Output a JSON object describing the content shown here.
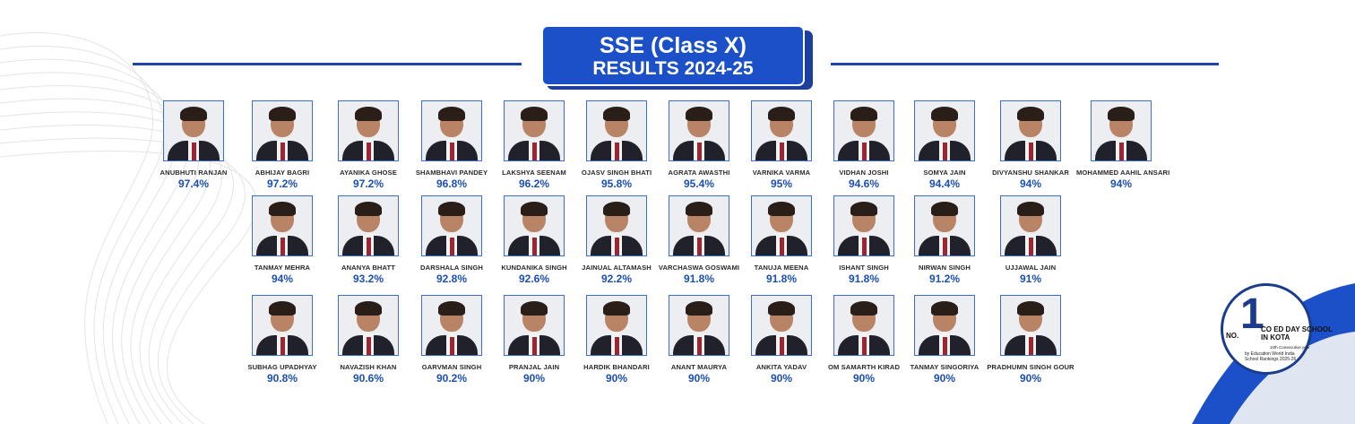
{
  "header": {
    "title_line1": "SSE (Class X)",
    "title_line2": "RESULTS 2024-25"
  },
  "students": [
    {
      "name": "ANUBHUTI RANJAN",
      "score": "97.4%"
    },
    {
      "name": "ABHIJAY BAGRI",
      "score": "97.2%"
    },
    {
      "name": "AYANIKA GHOSE",
      "score": "97.2%"
    },
    {
      "name": "SHAMBHAVI PANDEY",
      "score": "96.8%"
    },
    {
      "name": "LAKSHYA SEENAM",
      "score": "96.2%"
    },
    {
      "name": "OJASV SINGH BHATI",
      "score": "95.8%"
    },
    {
      "name": "AGRATA AWASTHI",
      "score": "95.4%"
    },
    {
      "name": "VARNIKA VARMA",
      "score": "95%"
    },
    {
      "name": "VIDHAN JOSHI",
      "score": "94.6%"
    },
    {
      "name": "SOMYA JAIN",
      "score": "94.4%"
    },
    {
      "name": "DIVYANSHU SHANKAR",
      "score": "94%"
    },
    {
      "name": "MOHAMMED AAHIL ANSARI",
      "score": "94%"
    },
    {
      "name": "TANMAY MEHRA",
      "score": "94%"
    },
    {
      "name": "ANANYA BHATT",
      "score": "93.2%"
    },
    {
      "name": "DARSHALA SINGH",
      "score": "92.8%"
    },
    {
      "name": "KUNDANIKA SINGH",
      "score": "92.6%"
    },
    {
      "name": "JAINUAL ALTAMASH",
      "score": "92.2%"
    },
    {
      "name": "VARCHASWA GOSWAMI",
      "score": "91.8%"
    },
    {
      "name": "TANUJA MEENA",
      "score": "91.8%"
    },
    {
      "name": "ISHANT SINGH",
      "score": "91.8%"
    },
    {
      "name": "NIRWAN SINGH",
      "score": "91.2%"
    },
    {
      "name": "UJJAWAL JAIN",
      "score": "91%"
    },
    {
      "name": "SUBHAG UPADHYAY",
      "score": "90.8%"
    },
    {
      "name": "NAVAZISH KHAN",
      "score": "90.6%"
    },
    {
      "name": "GARVMAN SINGH",
      "score": "90.2%"
    },
    {
      "name": "PRANJAL JAIN",
      "score": "90%"
    },
    {
      "name": "HARDIK BHANDARI",
      "score": "90%"
    },
    {
      "name": "ANANT MAURYA",
      "score": "90%"
    },
    {
      "name": "ANKITA YADAV",
      "score": "90%"
    },
    {
      "name": "OM SAMARTH KIRAD",
      "score": "90%"
    },
    {
      "name": "TANMAY SINGORIYA",
      "score": "90%"
    },
    {
      "name": "PRADHUMN SINGH GOUR",
      "score": "90%"
    }
  ],
  "badge": {
    "number": "1",
    "prefix": "NO.",
    "line1": "CO ED DAY SCHOOL",
    "line2": "IN KOTA",
    "sub1": "10th Consecutive year",
    "sub2": "by Education World India School Rankings 2025-26"
  },
  "colors": {
    "accent": "#1b50c8",
    "score": "#1b4fb5",
    "line": "#1c46a6"
  }
}
